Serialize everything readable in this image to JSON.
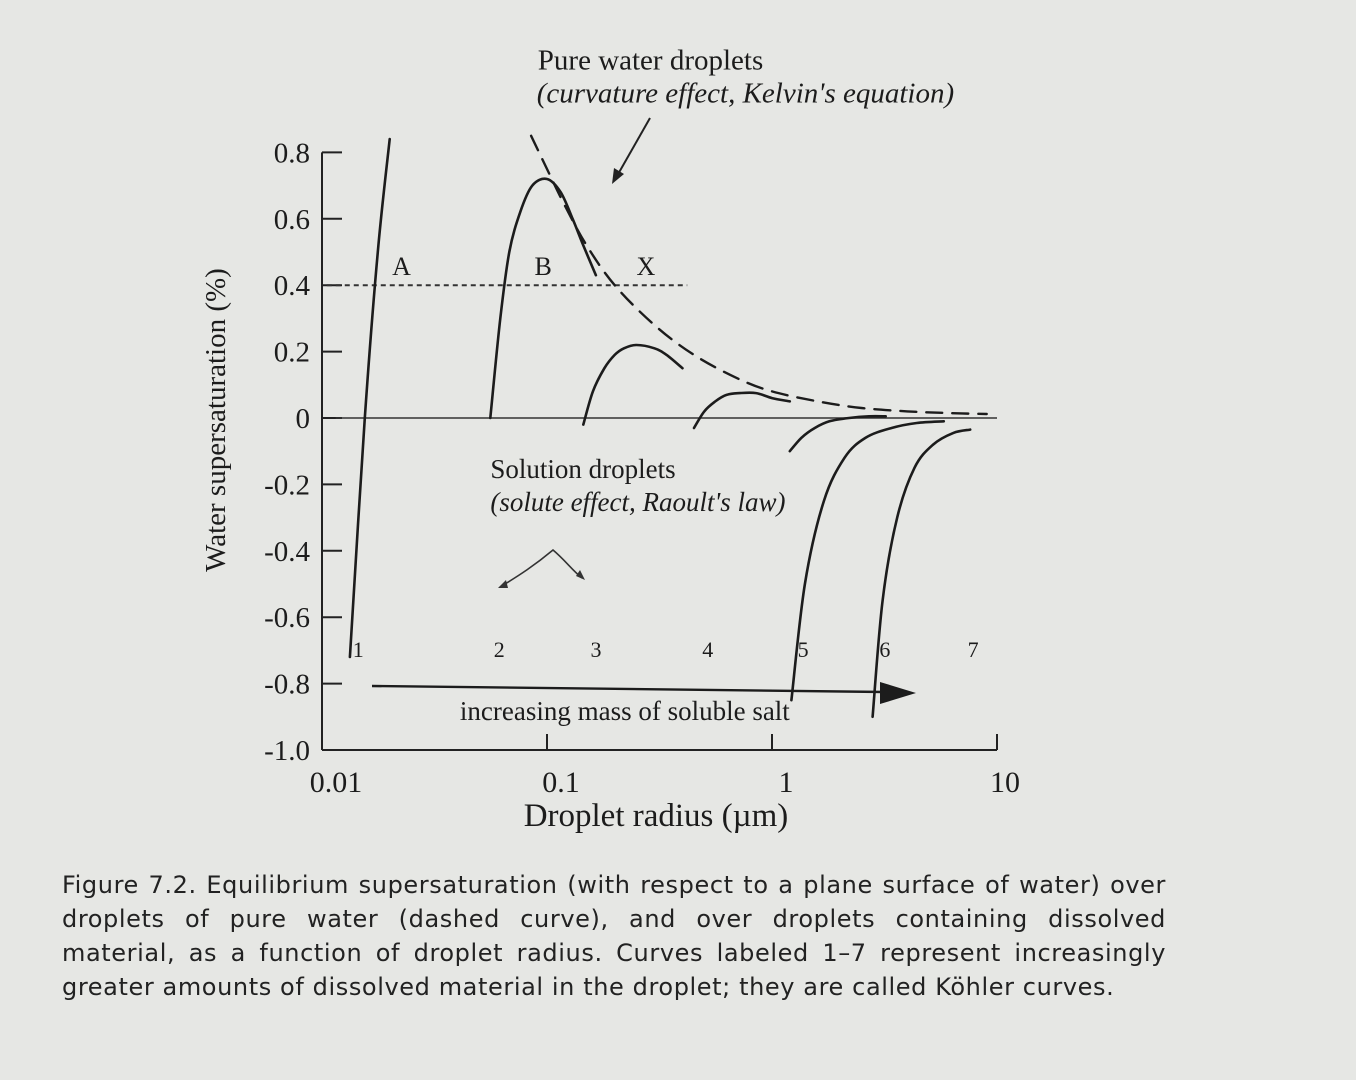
{
  "chart_data": {
    "type": "line",
    "title": "",
    "xlabel": "Droplet radius (µm)",
    "ylabel": "Water supersaturation (%)",
    "x_scale": "log",
    "xlim": [
      0.01,
      10
    ],
    "ylim": [
      -1.0,
      0.8
    ],
    "x_ticks": [
      "0.01",
      "0.1",
      "1",
      "10"
    ],
    "y_ticks": [
      "0.8",
      "0.6",
      "0.4",
      "0.2",
      "0",
      "-0.2",
      "-0.4",
      "-0.6",
      "-0.8",
      "-1.0"
    ],
    "grid": false,
    "series": [
      {
        "name": "1",
        "kind": "kohler",
        "x": [
          0.0133,
          0.0155,
          0.0177,
          0.02
        ],
        "y": [
          -0.72,
          0.0,
          0.5,
          0.84
        ]
      },
      {
        "name": "2",
        "kind": "kohler",
        "x": [
          0.056,
          0.062,
          0.068,
          0.076,
          0.086,
          0.1,
          0.115,
          0.13,
          0.145,
          0.165
        ],
        "y": [
          0.0,
          0.3,
          0.5,
          0.62,
          0.7,
          0.72,
          0.68,
          0.6,
          0.52,
          0.43
        ]
      },
      {
        "name": "3",
        "kind": "kohler",
        "x": [
          0.145,
          0.16,
          0.18,
          0.2,
          0.22,
          0.25,
          0.3,
          0.34,
          0.4
        ],
        "y": [
          -0.02,
          0.08,
          0.15,
          0.19,
          0.21,
          0.22,
          0.21,
          0.19,
          0.15
        ]
      },
      {
        "name": "4",
        "kind": "kohler",
        "x": [
          0.45,
          0.5,
          0.56,
          0.63,
          0.72,
          0.85,
          1.0,
          1.2
        ],
        "y": [
          -0.03,
          0.02,
          0.05,
          0.07,
          0.075,
          0.075,
          0.06,
          0.05
        ]
      },
      {
        "name": "5",
        "kind": "kohler",
        "x": [
          1.2,
          1.35,
          1.55,
          1.8,
          2.2,
          2.7,
          3.2
        ],
        "y": [
          -0.1,
          -0.06,
          -0.03,
          -0.01,
          0.0,
          0.005,
          0.005
        ]
      },
      {
        "name": "6",
        "kind": "kohler",
        "x": [
          1.22,
          1.4,
          1.7,
          2.1,
          2.6,
          3.4,
          4.4,
          5.8
        ],
        "y": [
          -0.85,
          -0.5,
          -0.25,
          -0.12,
          -0.06,
          -0.03,
          -0.015,
          -0.01
        ]
      },
      {
        "name": "7",
        "kind": "kohler",
        "x": [
          2.8,
          3.1,
          3.6,
          4.3,
          5.2,
          6.4,
          7.6
        ],
        "y": [
          -0.9,
          -0.55,
          -0.3,
          -0.15,
          -0.08,
          -0.045,
          -0.035
        ]
      },
      {
        "name": "pure water",
        "kind": "kelvin",
        "dashed": true,
        "x": [
          0.085,
          0.1,
          0.12,
          0.15,
          0.2,
          0.3,
          0.45,
          0.7,
          1.0,
          1.6,
          2.5,
          4.0,
          6.0,
          9.0
        ],
        "y": [
          0.85,
          0.75,
          0.64,
          0.52,
          0.4,
          0.28,
          0.19,
          0.12,
          0.08,
          0.05,
          0.03,
          0.02,
          0.015,
          0.012
        ]
      }
    ],
    "reference_lines": [
      {
        "kind": "horizontal",
        "y": 0.0,
        "x_range": [
          0.0115,
          10
        ],
        "style": "solid"
      },
      {
        "kind": "horizontal",
        "y": 0.4,
        "x_range": [
          0.0105,
          0.42
        ],
        "style": "dotted"
      }
    ],
    "annotations": [
      {
        "text": "A",
        "x": 0.0205,
        "y": 0.43
      },
      {
        "text": "B",
        "x": 0.088,
        "y": 0.43
      },
      {
        "text": "X",
        "x": 0.25,
        "y": 0.43
      },
      {
        "text": "1",
        "x": 0.0137,
        "y": -0.72
      },
      {
        "text": "2",
        "x": 0.058,
        "y": -0.72
      },
      {
        "text": "3",
        "x": 0.156,
        "y": -0.72
      },
      {
        "text": "4",
        "x": 0.49,
        "y": -0.72
      },
      {
        "text": "5",
        "x": 1.3,
        "y": -0.72
      },
      {
        "text": "6",
        "x": 3.0,
        "y": -0.72
      },
      {
        "text": "7",
        "x": 7.4,
        "y": -0.72
      },
      {
        "text": "Pure water droplets",
        "x": 0.091,
        "y": 1.05
      },
      {
        "text": "(curvature effect, Kelvin's equation)",
        "x": 0.09,
        "y": 0.95
      },
      {
        "text": "Solution droplets",
        "x": 0.056,
        "y": -0.18
      },
      {
        "text": "(solute effect, Raoult's law)",
        "x": 0.056,
        "y": -0.28
      },
      {
        "text": "increasing mass of soluble salt",
        "x": 0.041,
        "y": -0.91
      }
    ]
  },
  "caption": "Figure 7.2. Equilibrium supersaturation (with respect to a plane surface of water) over droplets of pure water (dashed curve), and over droplets containing dissolved material, as a function of droplet radius. Curves labeled 1–7 represent increasingly greater amounts of dissolved material in the droplet; they are called Köhler curves."
}
